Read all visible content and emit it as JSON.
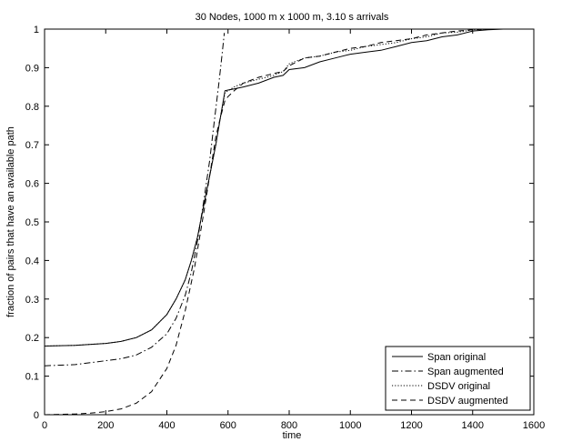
{
  "chart_data": {
    "type": "line",
    "title": "30 Nodes, 1000 m x 1000 m, 3.10 s arrivals",
    "xlabel": "time",
    "ylabel": "fraction of pairs that have an available path",
    "xlim": [
      0,
      1600
    ],
    "ylim": [
      0,
      1
    ],
    "xticks": [
      0,
      200,
      400,
      600,
      800,
      1000,
      1200,
      1400,
      1600
    ],
    "yticks": [
      0,
      0.1,
      0.2,
      0.3,
      0.4,
      0.5,
      0.6,
      0.7,
      0.8,
      0.9,
      1
    ],
    "grid": false,
    "legend_position": "bottom-right",
    "series": [
      {
        "name": "Span original",
        "style": "solid",
        "x": [
          0,
          100,
          200,
          250,
          300,
          350,
          400,
          430,
          460,
          480,
          500,
          520,
          540,
          560,
          575,
          590,
          600,
          620,
          650,
          700,
          750,
          780,
          800,
          850,
          900,
          950,
          1000,
          1050,
          1100,
          1150,
          1200,
          1250,
          1300,
          1350,
          1400,
          1450,
          1500,
          1570
        ],
        "y": [
          0.178,
          0.18,
          0.185,
          0.19,
          0.2,
          0.22,
          0.26,
          0.3,
          0.35,
          0.4,
          0.46,
          0.54,
          0.62,
          0.7,
          0.77,
          0.84,
          0.842,
          0.845,
          0.85,
          0.86,
          0.875,
          0.88,
          0.895,
          0.9,
          0.915,
          0.925,
          0.935,
          0.94,
          0.945,
          0.955,
          0.965,
          0.97,
          0.98,
          0.985,
          0.995,
          0.998,
          1.0,
          1.0
        ]
      },
      {
        "name": "Span augmented",
        "style": "dashdot",
        "x": [
          0,
          100,
          150,
          200,
          250,
          300,
          350,
          400,
          430,
          460,
          480,
          500,
          520,
          540,
          555,
          570,
          580,
          588
        ],
        "y": [
          0.127,
          0.13,
          0.135,
          0.14,
          0.145,
          0.155,
          0.175,
          0.21,
          0.25,
          0.31,
          0.37,
          0.45,
          0.55,
          0.66,
          0.76,
          0.86,
          0.93,
          0.99
        ]
      },
      {
        "name": "DSDV original",
        "style": "dotted",
        "x": [
          0,
          100,
          200,
          250,
          300,
          350,
          400,
          430,
          460,
          480,
          500,
          520,
          540,
          560,
          575,
          590,
          600,
          620,
          650,
          700,
          750,
          780,
          800,
          850,
          900,
          950,
          1000,
          1050,
          1100,
          1150,
          1200,
          1250,
          1300,
          1350,
          1400,
          1450,
          1500,
          1570
        ],
        "y": [
          0.178,
          0.18,
          0.185,
          0.19,
          0.2,
          0.22,
          0.26,
          0.3,
          0.35,
          0.4,
          0.46,
          0.54,
          0.62,
          0.7,
          0.77,
          0.835,
          0.84,
          0.85,
          0.86,
          0.87,
          0.88,
          0.89,
          0.91,
          0.925,
          0.93,
          0.94,
          0.945,
          0.955,
          0.96,
          0.965,
          0.975,
          0.98,
          0.99,
          0.992,
          0.998,
          1.0,
          1.0,
          1.0
        ]
      },
      {
        "name": "DSDV augmented",
        "style": "dashed",
        "x": [
          0,
          100,
          150,
          200,
          250,
          300,
          350,
          400,
          430,
          460,
          490,
          520,
          540,
          560,
          575,
          590,
          600,
          620,
          650,
          700,
          750,
          780,
          800,
          850,
          900,
          950,
          1000,
          1050,
          1100,
          1150,
          1200,
          1250,
          1300,
          1350,
          1400,
          1450,
          1500,
          1570
        ],
        "y": [
          0.0,
          0.002,
          0.004,
          0.008,
          0.015,
          0.03,
          0.06,
          0.12,
          0.18,
          0.27,
          0.38,
          0.52,
          0.62,
          0.72,
          0.77,
          0.815,
          0.825,
          0.84,
          0.86,
          0.875,
          0.885,
          0.89,
          0.905,
          0.925,
          0.93,
          0.94,
          0.95,
          0.955,
          0.965,
          0.97,
          0.975,
          0.985,
          0.99,
          0.995,
          0.998,
          1.0,
          1.0,
          1.0
        ]
      }
    ]
  }
}
